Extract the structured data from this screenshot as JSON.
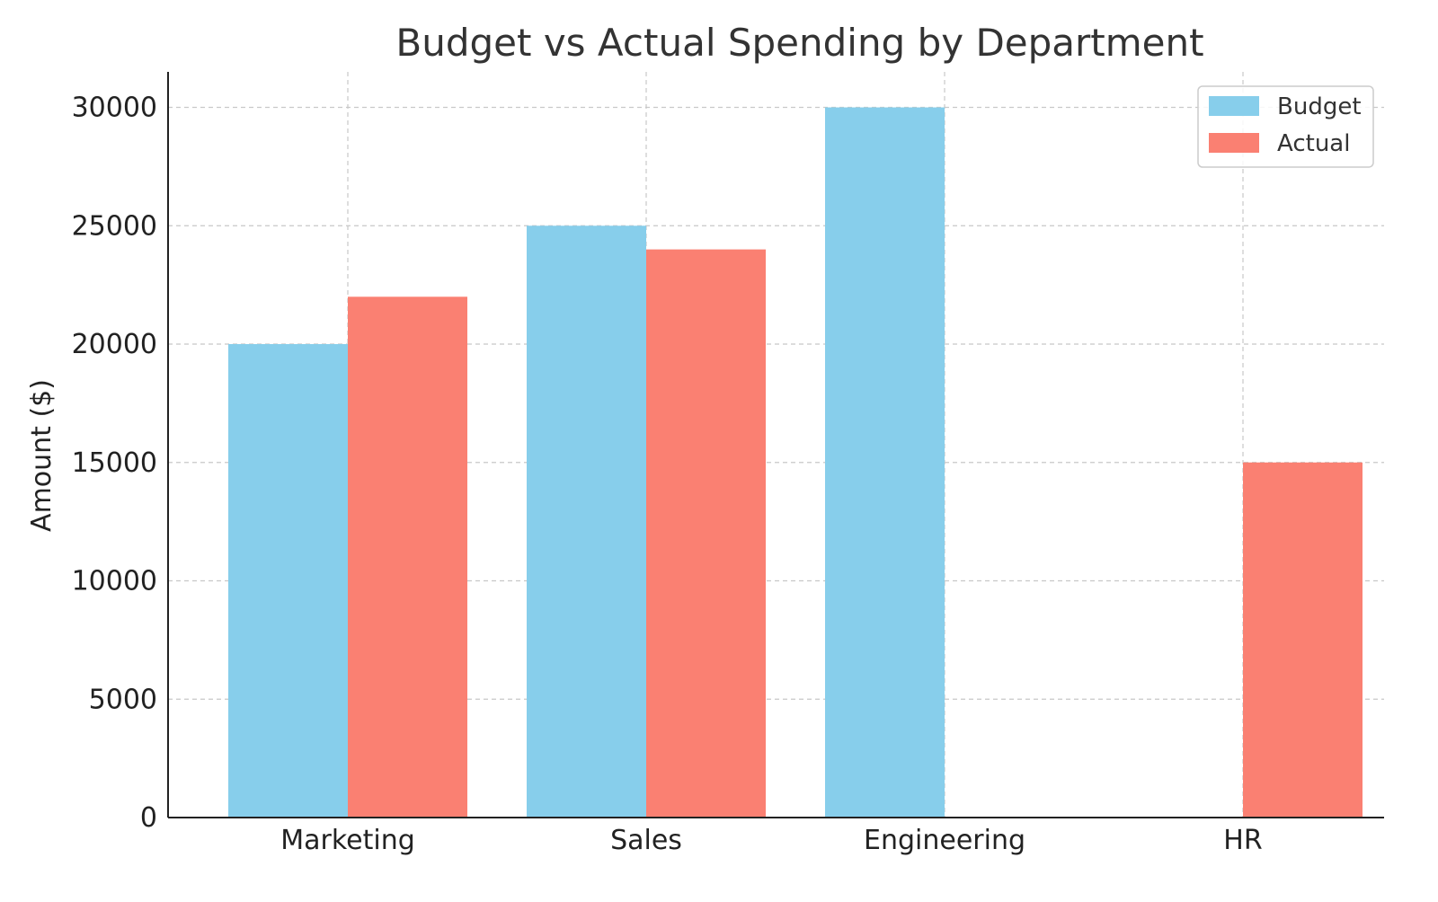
{
  "chart_data": {
    "type": "bar",
    "title": "Budget vs Actual Spending by Department",
    "xlabel": "",
    "ylabel": "Amount ($)",
    "categories": [
      "Marketing",
      "Sales",
      "Engineering",
      "HR"
    ],
    "series": [
      {
        "name": "Budget",
        "color": "#87CEEB",
        "values": [
          20000,
          25000,
          30000,
          0
        ]
      },
      {
        "name": "Actual",
        "color": "#FA8072",
        "values": [
          22000,
          24000,
          0,
          15000
        ]
      }
    ],
    "ylim": [
      0,
      31500
    ],
    "yticks": [
      "0",
      "5000",
      "10000",
      "15000",
      "20000",
      "25000",
      "30000"
    ],
    "grid": true,
    "legend": "top-right"
  }
}
